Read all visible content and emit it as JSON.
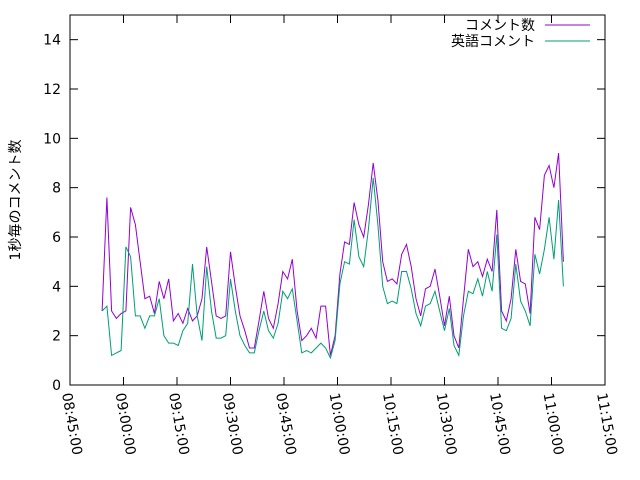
{
  "chart_data": {
    "type": "line",
    "ylabel": "1秒毎のコメント数",
    "xlim": [
      "08:45:00",
      "11:15:00"
    ],
    "xticks": [
      "08:45:00",
      "09:00:00",
      "09:15:00",
      "09:30:00",
      "09:45:00",
      "10:00:00",
      "10:15:00",
      "10:30:00",
      "10:45:00",
      "11:00:00",
      "11:15:00"
    ],
    "ylim": [
      0,
      15
    ],
    "yticks": [
      0,
      2,
      4,
      6,
      8,
      10,
      12,
      14
    ],
    "legend": "top-right",
    "x": [
      "08:54:00",
      "08:55:20",
      "08:56:40",
      "08:58:00",
      "08:59:20",
      "09:00:40",
      "09:02:00",
      "09:03:20",
      "09:04:40",
      "09:06:00",
      "09:07:20",
      "09:08:40",
      "09:10:00",
      "09:11:20",
      "09:12:40",
      "09:14:00",
      "09:15:20",
      "09:16:40",
      "09:18:00",
      "09:19:20",
      "09:20:40",
      "09:22:00",
      "09:23:20",
      "09:24:40",
      "09:26:00",
      "09:27:20",
      "09:28:40",
      "09:30:00",
      "09:31:20",
      "09:32:40",
      "09:34:00",
      "09:35:20",
      "09:36:40",
      "09:38:00",
      "09:39:20",
      "09:40:40",
      "09:42:00",
      "09:43:20",
      "09:44:40",
      "09:46:00",
      "09:47:20",
      "09:48:40",
      "09:50:00",
      "09:51:20",
      "09:52:40",
      "09:54:00",
      "09:55:20",
      "09:56:40",
      "09:58:00",
      "09:59:20",
      "10:00:40",
      "10:02:00",
      "10:03:20",
      "10:04:40",
      "10:06:00",
      "10:07:20",
      "10:08:40",
      "10:10:00",
      "10:11:20",
      "10:12:40",
      "10:14:00",
      "10:15:20",
      "10:16:40",
      "10:18:00",
      "10:19:20",
      "10:20:40",
      "10:22:00",
      "10:23:20",
      "10:24:40",
      "10:26:00",
      "10:27:20",
      "10:28:40",
      "10:30:00",
      "10:31:20",
      "10:32:40",
      "10:34:00",
      "10:35:20",
      "10:36:40",
      "10:38:00",
      "10:39:20",
      "10:40:40",
      "10:42:00",
      "10:43:20",
      "10:44:40",
      "10:46:00",
      "10:47:20",
      "10:48:40",
      "10:50:00",
      "10:51:20",
      "10:52:40",
      "10:54:00",
      "10:55:20",
      "10:56:40",
      "10:58:00",
      "10:59:20",
      "11:00:40",
      "11:02:00",
      "11:03:20"
    ],
    "series": [
      {
        "name": "コメント数",
        "color": "#9400d3",
        "values": [
          3.0,
          7.6,
          3.0,
          2.7,
          2.9,
          3.0,
          7.2,
          6.5,
          5.0,
          3.5,
          3.6,
          2.9,
          4.2,
          3.5,
          4.3,
          2.6,
          2.9,
          2.5,
          3.1,
          2.6,
          2.8,
          3.5,
          5.6,
          4.2,
          2.8,
          2.7,
          2.8,
          5.4,
          4.0,
          2.8,
          2.2,
          1.5,
          1.5,
          2.6,
          3.8,
          2.7,
          2.3,
          3.3,
          4.6,
          4.3,
          5.1,
          3.0,
          1.8,
          2.0,
          2.3,
          1.9,
          3.2,
          3.2,
          1.2,
          2.0,
          4.5,
          5.8,
          5.7,
          7.4,
          6.5,
          6.0,
          7.3,
          9.0,
          7.5,
          5.0,
          4.2,
          4.3,
          4.1,
          5.3,
          5.7,
          4.8,
          3.5,
          2.8,
          3.9,
          4.0,
          4.7,
          3.6,
          2.4,
          3.6,
          2.0,
          1.5,
          3.5,
          5.5,
          4.8,
          5.0,
          4.4,
          5.1,
          4.6,
          7.1,
          3.0,
          2.6,
          3.5,
          5.5,
          4.2,
          4.1,
          2.9,
          6.8,
          6.3,
          8.5,
          8.9,
          8.0,
          9.4,
          5.0
        ]
      },
      {
        "name": "英語コメント",
        "color": "#009e73",
        "values": [
          3.0,
          3.2,
          1.2,
          1.3,
          1.4,
          5.6,
          5.2,
          2.8,
          2.8,
          2.3,
          2.8,
          2.8,
          3.5,
          2.0,
          1.7,
          1.7,
          1.6,
          2.2,
          2.5,
          4.9,
          2.8,
          1.8,
          4.8,
          3.0,
          1.9,
          1.9,
          2.0,
          4.3,
          3.0,
          2.0,
          1.6,
          1.3,
          1.3,
          2.2,
          3.0,
          2.2,
          1.9,
          2.5,
          3.8,
          3.5,
          3.9,
          2.6,
          1.3,
          1.4,
          1.3,
          1.5,
          1.7,
          1.5,
          1.1,
          1.8,
          4.1,
          5.0,
          4.9,
          6.7,
          5.2,
          4.8,
          6.3,
          8.4,
          6.5,
          4.0,
          3.3,
          3.4,
          3.3,
          4.6,
          4.6,
          3.9,
          2.9,
          2.4,
          3.2,
          3.3,
          3.8,
          3.0,
          2.2,
          3.1,
          1.6,
          1.2,
          2.8,
          3.8,
          3.7,
          4.3,
          3.6,
          4.6,
          3.8,
          6.1,
          2.3,
          2.2,
          2.7,
          4.9,
          3.4,
          3.0,
          2.4,
          5.3,
          4.5,
          5.5,
          6.8,
          5.1,
          7.5,
          4.0
        ]
      }
    ]
  }
}
